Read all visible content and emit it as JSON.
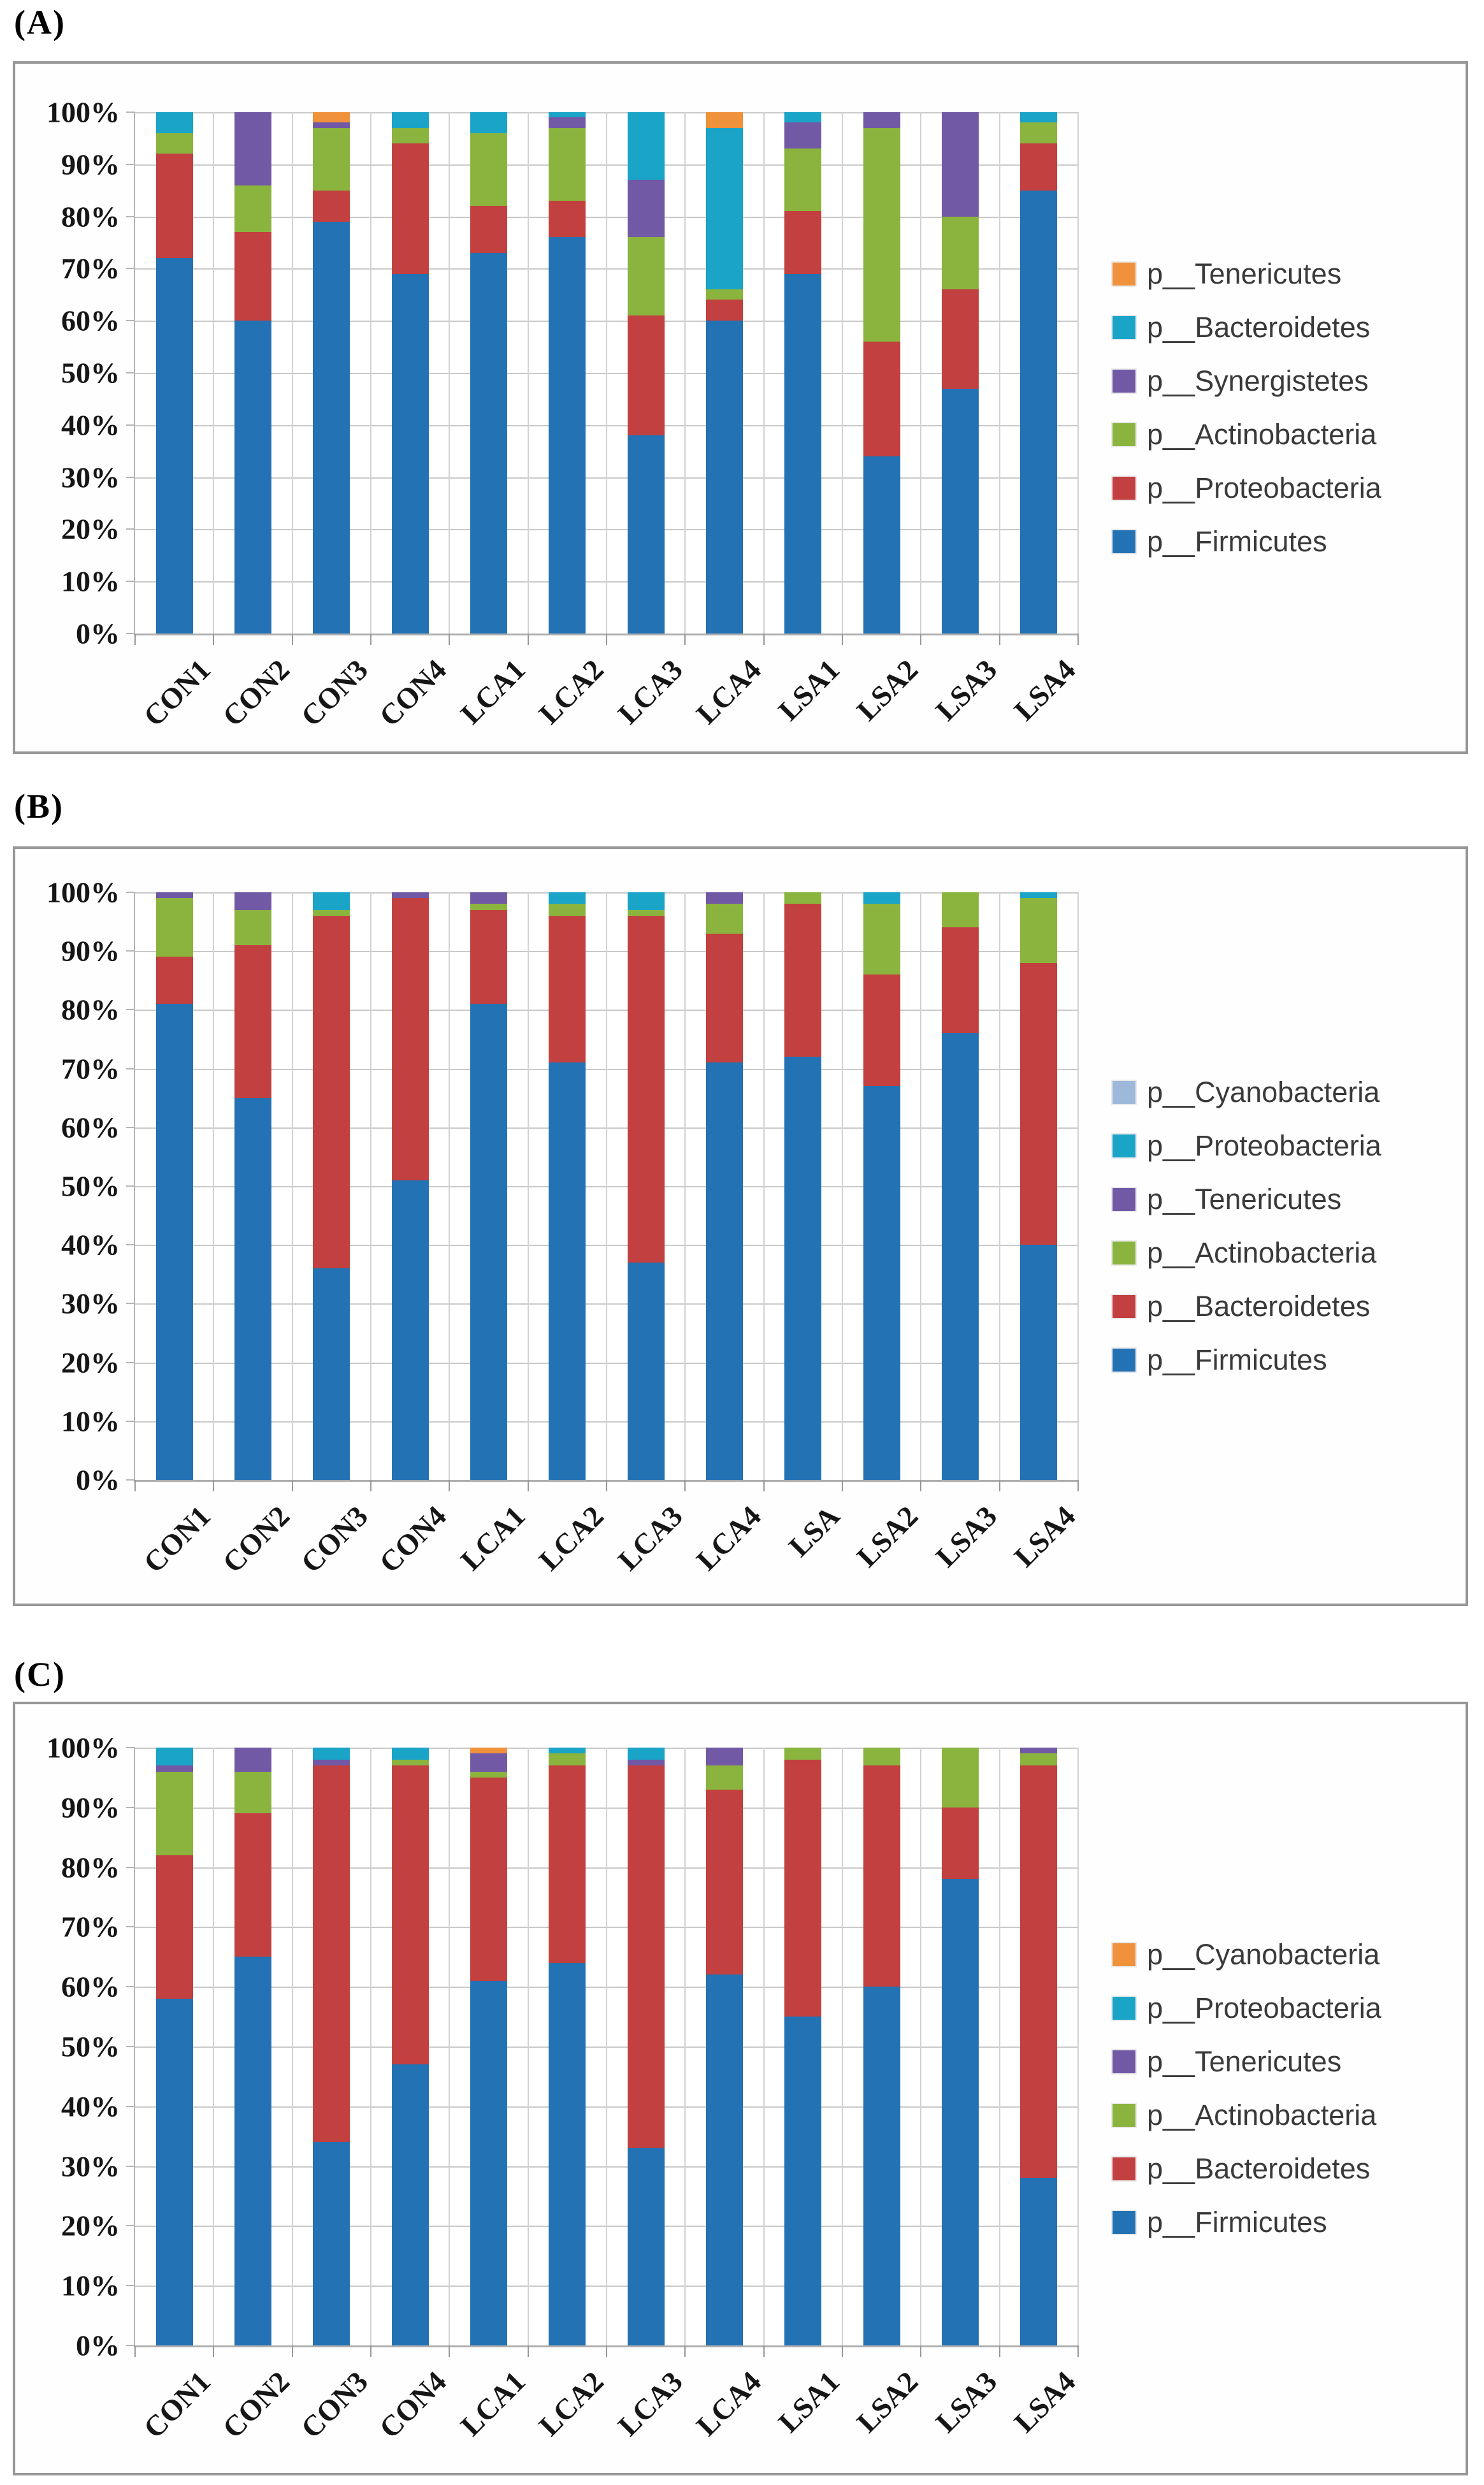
{
  "chart_data": [
    {
      "panel_label": "(A)",
      "type": "bar",
      "stacked": true,
      "unit": "percent",
      "ylim": [
        0,
        100
      ],
      "grid": "both",
      "legend_position": "right",
      "y_ticks": [
        "100%",
        "90%",
        "80%",
        "70%",
        "60%",
        "50%",
        "40%",
        "30%",
        "20%",
        "10%",
        "0%"
      ],
      "categories": [
        "CON1",
        "CON2",
        "CON3",
        "CON4",
        "LCA1",
        "LCA2",
        "LCA3",
        "LCA4",
        "LSA1",
        "LSA2",
        "LSA3",
        "LSA4"
      ],
      "series": [
        {
          "name": "p__Firmicutes",
          "color": "#2372B4",
          "values": [
            72,
            60,
            79,
            69,
            73,
            76,
            38,
            60,
            69,
            34,
            47,
            85
          ]
        },
        {
          "name": "p__Proteobacteria",
          "color": "#C2403F",
          "values": [
            20,
            17,
            6,
            25,
            9,
            7,
            23,
            4,
            12,
            22,
            19,
            9
          ]
        },
        {
          "name": "p__Actinobacteria",
          "color": "#8BB43E",
          "values": [
            4,
            9,
            12,
            3,
            14,
            14,
            15,
            2,
            12,
            41,
            14,
            4
          ]
        },
        {
          "name": "p__Synergistetes",
          "color": "#7159A5",
          "values": [
            0,
            14,
            1,
            0,
            0,
            2,
            11,
            0,
            5,
            3,
            20,
            0
          ]
        },
        {
          "name": "p__Bacteroidetes",
          "color": "#1AA4C8",
          "values": [
            4,
            0,
            0,
            3,
            4,
            1,
            13,
            31,
            2,
            0,
            0,
            2
          ]
        },
        {
          "name": "p__Tenericutes",
          "color": "#F0913B",
          "values": [
            0,
            0,
            2,
            0,
            0,
            0,
            0,
            3,
            0,
            0,
            0,
            0
          ]
        }
      ]
    },
    {
      "panel_label": "(B)",
      "type": "bar",
      "stacked": true,
      "unit": "percent",
      "ylim": [
        0,
        100
      ],
      "grid": "both",
      "legend_position": "right",
      "y_ticks": [
        "100%",
        "90%",
        "80%",
        "70%",
        "60%",
        "50%",
        "40%",
        "30%",
        "20%",
        "10%",
        "0%"
      ],
      "categories": [
        "CON1",
        "CON2",
        "CON3",
        "CON4",
        "LCA1",
        "LCA2",
        "LCA3",
        "LCA4",
        "LSA",
        "LSA2",
        "LSA3",
        "LSA4"
      ],
      "series": [
        {
          "name": "p__Firmicutes",
          "color": "#2372B4",
          "values": [
            81,
            65,
            36,
            51,
            81,
            71,
            37,
            71,
            72,
            67,
            76,
            40
          ]
        },
        {
          "name": "p__Bacteroidetes",
          "color": "#C2403F",
          "values": [
            8,
            26,
            60,
            48,
            16,
            25,
            59,
            22,
            26,
            19,
            18,
            48
          ]
        },
        {
          "name": "p__Actinobacteria",
          "color": "#8BB43E",
          "values": [
            10,
            6,
            1,
            0,
            1,
            2,
            1,
            5,
            2,
            12,
            6,
            11
          ]
        },
        {
          "name": "p__Tenericutes",
          "color": "#7159A5",
          "values": [
            1,
            3,
            0,
            1,
            2,
            0,
            0,
            2,
            0,
            0,
            0,
            0
          ]
        },
        {
          "name": "p__Proteobacteria",
          "color": "#1AA4C8",
          "values": [
            0,
            0,
            3,
            0,
            0,
            2,
            3,
            0,
            0,
            2,
            0,
            1
          ]
        },
        {
          "name": "p__Cyanobacteria",
          "color": "#9EB8DB",
          "values": [
            0,
            0,
            0,
            0,
            0,
            0,
            0,
            0,
            0,
            0,
            0,
            0
          ]
        }
      ]
    },
    {
      "panel_label": "(C)",
      "type": "bar",
      "stacked": true,
      "unit": "percent",
      "ylim": [
        0,
        100
      ],
      "grid": "both",
      "legend_position": "right",
      "y_ticks": [
        "100%",
        "90%",
        "80%",
        "70%",
        "60%",
        "50%",
        "40%",
        "30%",
        "20%",
        "10%",
        "0%"
      ],
      "categories": [
        "CON1",
        "CON2",
        "CON3",
        "CON4",
        "LCA1",
        "LCA2",
        "LCA3",
        "LCA4",
        "LSA1",
        "LSA2",
        "LSA3",
        "LSA4"
      ],
      "series": [
        {
          "name": "p__Firmicutes",
          "color": "#2372B4",
          "values": [
            58,
            65,
            34,
            47,
            61,
            64,
            33,
            62,
            55,
            60,
            78,
            28
          ]
        },
        {
          "name": "p__Bacteroidetes",
          "color": "#C2403F",
          "values": [
            24,
            24,
            63,
            50,
            34,
            33,
            64,
            31,
            43,
            37,
            12,
            69
          ]
        },
        {
          "name": "p__Actinobacteria",
          "color": "#8BB43E",
          "values": [
            14,
            7,
            0,
            1,
            1,
            2,
            0,
            4,
            2,
            3,
            10,
            2
          ]
        },
        {
          "name": "p__Tenericutes",
          "color": "#7159A5",
          "values": [
            1,
            4,
            1,
            0,
            3,
            0,
            1,
            3,
            0,
            0,
            0,
            1
          ]
        },
        {
          "name": "p__Proteobacteria",
          "color": "#1AA4C8",
          "values": [
            3,
            0,
            2,
            2,
            0,
            1,
            2,
            0,
            0,
            0,
            0,
            0
          ]
        },
        {
          "name": "p__Cyanobacteria",
          "color": "#F0913B",
          "values": [
            0,
            0,
            0,
            0,
            1,
            0,
            0,
            0,
            0,
            0,
            0,
            0
          ]
        }
      ]
    }
  ]
}
